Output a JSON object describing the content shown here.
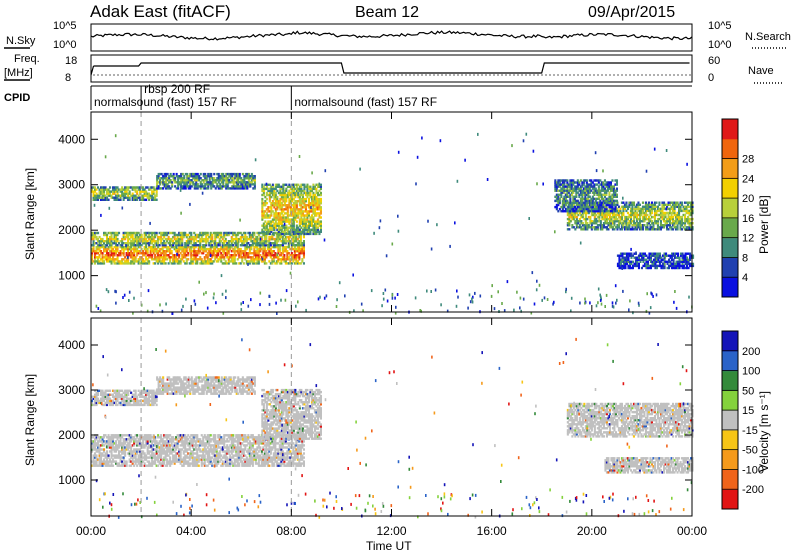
{
  "header": {
    "station": "Adak East (fitACF)",
    "beam": "Beam 12",
    "date": "09/Apr/2015"
  },
  "status_panels": {
    "nsky_label": "N.Sky",
    "nsearch_label": "N.Search",
    "freq_label": "Freq.",
    "freq_unit": "[MHz]",
    "nave_label": "Nave",
    "cpid_label": "CPID",
    "left_ticks_top": [
      "10^5",
      "10^0"
    ],
    "right_ticks_top": [
      "10^5",
      "10^0"
    ],
    "left_ticks_freq": [
      "18",
      "8"
    ],
    "right_ticks_nave": [
      "60",
      "0"
    ]
  },
  "cpid_segments": [
    {
      "label": "normalsound (fast) 157 RF",
      "start_hour": 0.0,
      "end_hour": 2.0
    },
    {
      "label": "rbsp 200 RF",
      "start_hour": 2.0,
      "end_hour": 8.0
    },
    {
      "label": "normalsound (fast) 157 RF",
      "start_hour": 8.0,
      "end_hour": 24.0
    }
  ],
  "chart_data": [
    {
      "type": "heatmap",
      "panel": "power",
      "ylabel": "Slant Range [km]",
      "ylim": [
        200,
        4600
      ],
      "yticks": [
        1000,
        2000,
        3000,
        4000
      ],
      "xlim": [
        0,
        24
      ],
      "colorbar": {
        "label": "Power [dB]",
        "ticks": [
          "4",
          "8",
          "12",
          "16",
          "20",
          "24",
          "28"
        ],
        "colors": [
          "#0a10e0",
          "#2040b0",
          "#3f8a7c",
          "#69a94b",
          "#b8cf3a",
          "#f3d000",
          "#f39d18",
          "#f0650d",
          "#e01818"
        ]
      },
      "bands": [
        {
          "t0": 0.0,
          "t1": 8.5,
          "r0": 1250,
          "r1": 1650,
          "level": 0.9
        },
        {
          "t0": 0.0,
          "t1": 8.5,
          "r0": 1650,
          "r1": 1950,
          "level": 0.6
        },
        {
          "t0": 0.0,
          "t1": 2.6,
          "r0": 2650,
          "r1": 2950,
          "level": 0.55
        },
        {
          "t0": 2.6,
          "t1": 6.5,
          "r0": 2900,
          "r1": 3250,
          "level": 0.4
        },
        {
          "t0": 6.8,
          "t1": 9.2,
          "r0": 1900,
          "r1": 3000,
          "level": 0.7
        },
        {
          "t0": 19.0,
          "t1": 24.0,
          "r0": 2000,
          "r1": 2600,
          "level": 0.55
        },
        {
          "t0": 18.5,
          "t1": 21.0,
          "r0": 2400,
          "r1": 3100,
          "level": 0.35
        },
        {
          "t0": 21.0,
          "t1": 24.0,
          "r0": 1150,
          "r1": 1500,
          "level": 0.2
        }
      ]
    },
    {
      "type": "heatmap",
      "panel": "velocity",
      "ylabel": "Slant Range [km]",
      "xlabel": "Time UT",
      "ylim": [
        200,
        4600
      ],
      "yticks": [
        1000,
        2000,
        3000,
        4000
      ],
      "xlim": [
        0,
        24
      ],
      "xticks": [
        "00:00",
        "04:00",
        "08:00",
        "12:00",
        "16:00",
        "20:00",
        "00:00"
      ],
      "colorbar": {
        "label": "Velocity [m s⁻¹]",
        "ticks": [
          "200",
          "100",
          "50",
          "15",
          "-15",
          "-50",
          "-100",
          "-200"
        ],
        "colors": [
          "#1414b8",
          "#2a63c8",
          "#338a3a",
          "#84d23c",
          "#c0c0c0",
          "#f7c516",
          "#f59a1b",
          "#f0641b",
          "#e21414"
        ]
      },
      "bands": [
        {
          "t0": 0.0,
          "t1": 8.5,
          "r0": 1300,
          "r1": 2000,
          "level": 0.5
        },
        {
          "t0": 0.0,
          "t1": 2.6,
          "r0": 2650,
          "r1": 3000,
          "level": 0.5
        },
        {
          "t0": 2.6,
          "t1": 6.5,
          "r0": 2900,
          "r1": 3300,
          "level": 0.5
        },
        {
          "t0": 6.8,
          "t1": 9.2,
          "r0": 1900,
          "r1": 3000,
          "level": 0.5
        },
        {
          "t0": 19.0,
          "t1": 24.0,
          "r0": 1950,
          "r1": 2700,
          "level": 0.5
        },
        {
          "t0": 20.5,
          "t1": 24.0,
          "r0": 1150,
          "r1": 1500,
          "level": 0.5
        }
      ]
    }
  ]
}
